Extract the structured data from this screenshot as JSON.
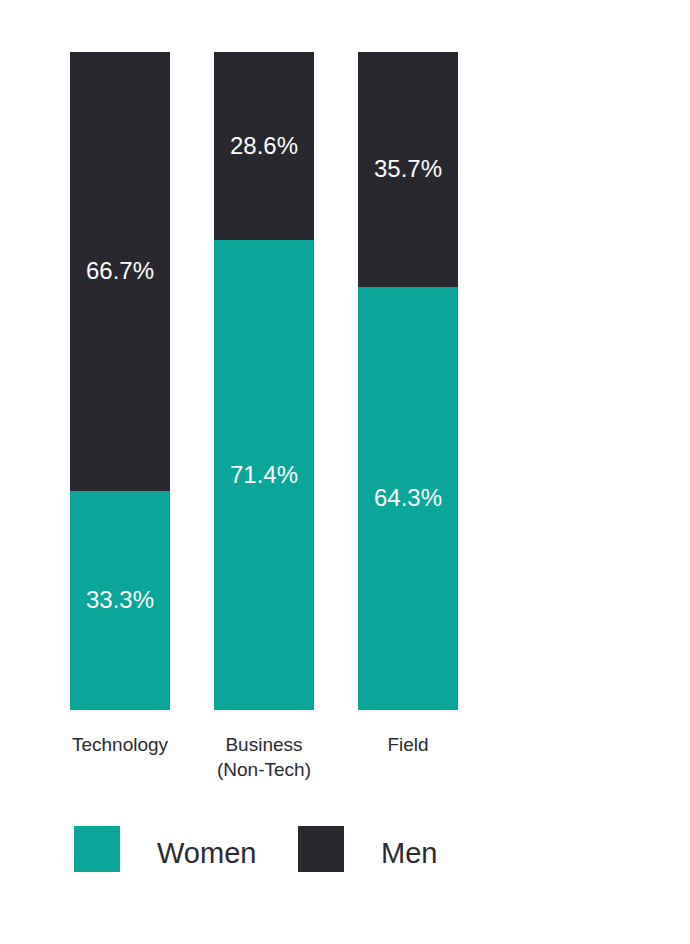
{
  "chart_data": {
    "type": "bar",
    "stacked": true,
    "data_labels": true,
    "tick_labels": "x",
    "grid": false,
    "legend": "bottom",
    "categories": [
      "Technology",
      "Business (Non-Tech)",
      "Field"
    ],
    "series": [
      {
        "name": "Women",
        "color": "#0ba599",
        "values": [
          33.3,
          71.4,
          64.3
        ],
        "value_labels": [
          "33.3%",
          "71.4%",
          "64.3%"
        ]
      },
      {
        "name": "Men",
        "color": "#28282e",
        "values": [
          66.7,
          28.6,
          35.7
        ],
        "value_labels": [
          "66.7%",
          "28.6%",
          "35.7%"
        ]
      }
    ],
    "ylim": [
      0,
      100
    ]
  }
}
